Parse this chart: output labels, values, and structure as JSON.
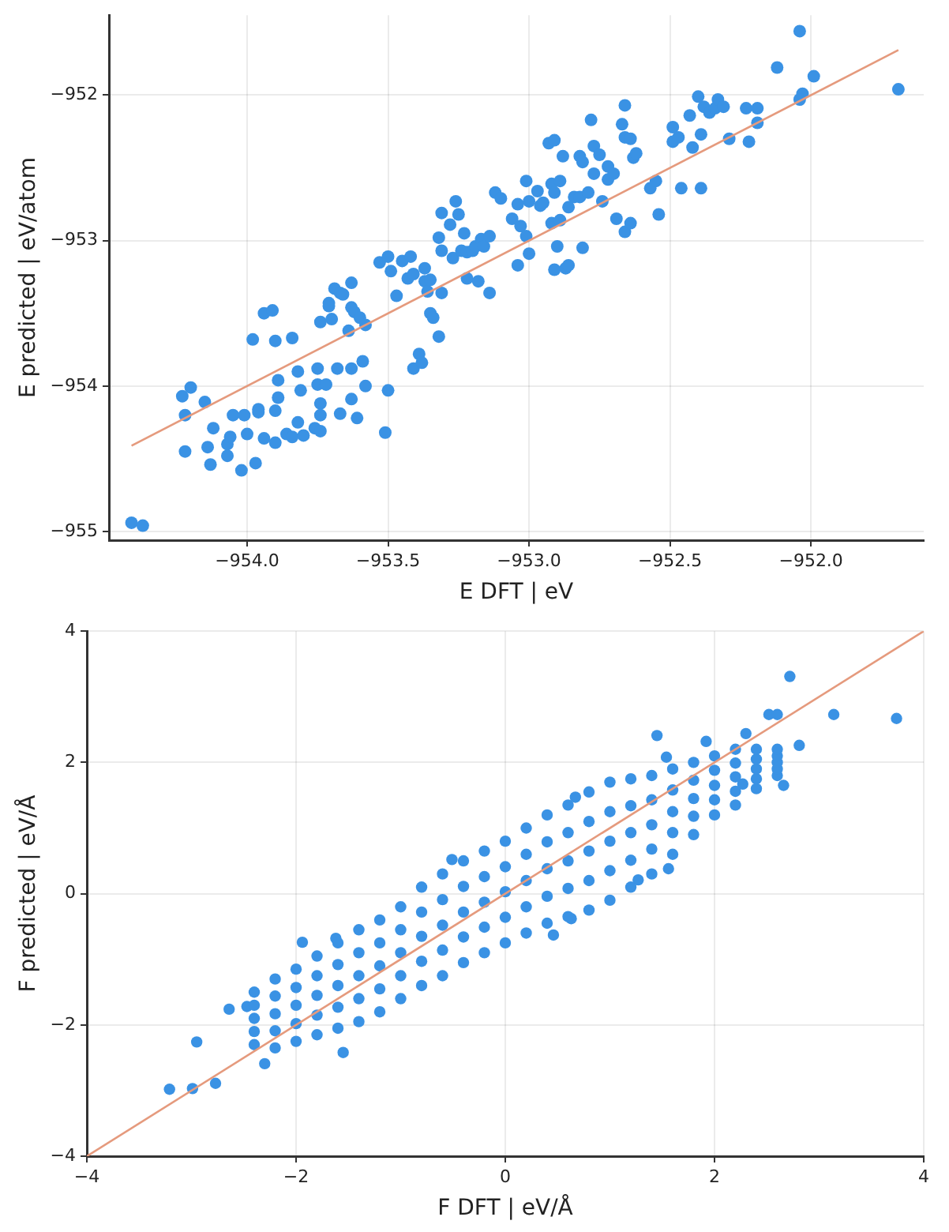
{
  "chart_data": [
    {
      "type": "scatter",
      "xlabel": "E DFT | eV",
      "ylabel": "E predicted | eV/atom",
      "xlim": [
        -954.49,
        -951.6
      ],
      "ylim": [
        -955.06,
        -951.45
      ],
      "grid": true,
      "xticks": [
        {
          "value": -954,
          "label": "−954.0"
        },
        {
          "value": -953.5,
          "label": "−953.5"
        },
        {
          "value": -953,
          "label": "−953.0"
        },
        {
          "value": -952.5,
          "label": "−952.5"
        },
        {
          "value": -952,
          "label": "−952.0"
        }
      ],
      "yticks": [
        {
          "value": -955,
          "label": "−955"
        },
        {
          "value": -954,
          "label": "−954"
        },
        {
          "value": -953,
          "label": "−953"
        },
        {
          "value": -952,
          "label": "−952"
        }
      ],
      "series": [
        {
          "color": "#3a92e4",
          "marker": "circle",
          "x": [
            -954.41,
            -954.37,
            -954.23,
            -954.2,
            -954.22,
            -954.22,
            -954.15,
            -954.14,
            -954.13,
            -954.12,
            -954.07,
            -954.07,
            -954.05,
            -954.06,
            -954.02,
            -954.01,
            -954.0,
            -953.97,
            -953.96,
            -953.96,
            -953.94,
            -953.98,
            -953.94,
            -953.91,
            -953.9,
            -953.9,
            -953.89,
            -953.89,
            -953.9,
            -953.86,
            -953.84,
            -953.84,
            -953.82,
            -953.82,
            -953.81,
            -953.8,
            -953.76,
            -953.75,
            -953.75,
            -953.74,
            -953.74,
            -953.74,
            -953.74,
            -953.72,
            -953.71,
            -953.71,
            -953.7,
            -953.69,
            -953.68,
            -953.67,
            -953.67,
            -953.66,
            -953.64,
            -953.63,
            -953.63,
            -953.63,
            -953.63,
            -953.62,
            -953.61,
            -953.6,
            -953.59,
            -953.58,
            -953.58,
            -953.53,
            -953.5,
            -953.49,
            -953.5,
            -953.51,
            -953.47,
            -953.45,
            -953.43,
            -953.42,
            -953.41,
            -953.41,
            -953.39,
            -953.38,
            -953.37,
            -953.37,
            -953.36,
            -953.35,
            -953.35,
            -953.34,
            -953.32,
            -953.32,
            -953.31,
            -953.31,
            -953.31,
            -953.28,
            -953.26,
            -953.27,
            -953.25,
            -953.24,
            -953.23,
            -953.22,
            -953.22,
            -953.2,
            -953.19,
            -953.18,
            -953.17,
            -953.16,
            -953.14,
            -953.14,
            -953.12,
            -953.1,
            -953.04,
            -953.06,
            -953.03,
            -953.04,
            -953.01,
            -953.01,
            -953.0,
            -953.0,
            -952.97,
            -952.96,
            -952.95,
            -952.93,
            -952.91,
            -952.92,
            -952.92,
            -952.91,
            -952.91,
            -952.89,
            -952.9,
            -952.88,
            -952.89,
            -952.87,
            -952.86,
            -952.86,
            -952.84,
            -952.82,
            -952.82,
            -952.81,
            -952.81,
            -952.79,
            -952.78,
            -952.77,
            -952.77,
            -952.75,
            -952.74,
            -952.72,
            -952.72,
            -952.7,
            -952.69,
            -952.67,
            -952.66,
            -952.66,
            -952.66,
            -952.64,
            -952.64,
            -952.63,
            -952.62,
            -952.57,
            -952.55,
            -952.54,
            -952.49,
            -952.49,
            -952.47,
            -952.46,
            -952.43,
            -952.42,
            -952.4,
            -952.39,
            -952.39,
            -952.38,
            -952.36,
            -952.34,
            -952.33,
            -952.31,
            -952.29,
            -952.23,
            -952.22,
            -952.19,
            -952.19,
            -952.12,
            -952.04,
            -952.04,
            -952.03,
            -951.99,
            -951.69
          ],
          "values": [
            -954.94,
            -954.96,
            -954.07,
            -954.01,
            -954.2,
            -954.45,
            -954.11,
            -954.42,
            -954.54,
            -954.29,
            -954.4,
            -954.48,
            -954.2,
            -954.35,
            -954.58,
            -954.2,
            -954.33,
            -954.53,
            -954.16,
            -954.18,
            -954.36,
            -953.68,
            -953.5,
            -953.48,
            -953.69,
            -954.39,
            -953.96,
            -954.08,
            -954.17,
            -954.33,
            -954.35,
            -953.67,
            -954.25,
            -953.9,
            -954.03,
            -954.34,
            -954.29,
            -953.88,
            -953.99,
            -954.12,
            -954.2,
            -954.31,
            -953.56,
            -953.99,
            -953.43,
            -953.45,
            -953.54,
            -953.33,
            -953.88,
            -954.19,
            -953.36,
            -953.37,
            -953.62,
            -953.88,
            -953.29,
            -954.09,
            -953.46,
            -953.49,
            -954.22,
            -953.53,
            -953.83,
            -953.58,
            -954.0,
            -953.15,
            -953.11,
            -953.21,
            -954.03,
            -954.32,
            -953.38,
            -953.14,
            -953.26,
            -953.11,
            -953.23,
            -953.88,
            -953.78,
            -953.84,
            -953.19,
            -953.28,
            -953.35,
            -953.27,
            -953.5,
            -953.53,
            -952.98,
            -953.66,
            -953.36,
            -952.81,
            -953.07,
            -952.89,
            -952.73,
            -953.12,
            -952.82,
            -953.07,
            -952.95,
            -953.26,
            -953.08,
            -953.07,
            -953.04,
            -953.28,
            -952.99,
            -953.04,
            -953.36,
            -952.97,
            -952.67,
            -952.71,
            -952.75,
            -952.85,
            -952.9,
            -953.17,
            -952.59,
            -952.97,
            -953.09,
            -952.73,
            -952.66,
            -952.76,
            -952.74,
            -952.33,
            -952.31,
            -952.61,
            -952.88,
            -952.67,
            -953.2,
            -952.86,
            -953.04,
            -952.42,
            -952.59,
            -953.19,
            -952.77,
            -953.17,
            -952.7,
            -952.7,
            -952.42,
            -952.46,
            -953.05,
            -952.67,
            -952.17,
            -952.35,
            -952.54,
            -952.41,
            -952.73,
            -952.49,
            -952.58,
            -952.54,
            -952.85,
            -952.2,
            -952.29,
            -952.07,
            -952.94,
            -952.3,
            -952.88,
            -952.43,
            -952.4,
            -952.64,
            -952.59,
            -952.82,
            -952.22,
            -952.32,
            -952.29,
            -952.64,
            -952.14,
            -952.36,
            -952.01,
            -952.27,
            -952.64,
            -952.08,
            -952.12,
            -952.09,
            -952.03,
            -952.08,
            -952.3,
            -952.09,
            -952.32,
            -952.09,
            -952.19,
            -951.81,
            -951.56,
            -952.03,
            -951.99,
            -951.87,
            -951.96
          ]
        },
        {
          "type": "line",
          "color": "#e59a7d",
          "x": [
            -954.41,
            -951.69
          ],
          "values": [
            -954.41,
            -951.69
          ]
        }
      ]
    },
    {
      "type": "scatter",
      "xlabel": "F DFT | eV/Å",
      "ylabel": "F predicted | eV/Å",
      "xlim": [
        -4,
        4
      ],
      "ylim": [
        -4,
        4
      ],
      "grid": true,
      "xticks": [
        {
          "value": -4,
          "label": "−4"
        },
        {
          "value": -2,
          "label": "−2"
        },
        0,
        2,
        4
      ],
      "yticks": [
        {
          "value": -4,
          "label": "−4"
        },
        {
          "value": -2,
          "label": "−2"
        },
        0,
        2,
        4
      ],
      "series": [
        {
          "color": "#3a92e4",
          "marker": "circle",
          "x": [
            2.72,
            3.14,
            3.74,
            2.52,
            2.6,
            1.45,
            2.3,
            2.81,
            2.66,
            -3.21,
            -2.99,
            -2.77,
            -2.95,
            -2.3,
            -1.55,
            -1.94,
            -0.51,
            0.67,
            0.46,
            1.56,
            1.27,
            -2.64,
            -2.47,
            -1.62,
            0.63,
            1.92,
            1.54,
            2.27,
            -2.4,
            -2.4,
            -2.4,
            -2.4,
            -2.4,
            -2.2,
            -2.2,
            -2.2,
            -2.2,
            -2.2,
            -2.0,
            -2.0,
            -2.0,
            -2.0,
            -2.0,
            -1.8,
            -1.8,
            -1.8,
            -1.8,
            -1.8,
            -1.6,
            -1.6,
            -1.6,
            -1.6,
            -1.6,
            -1.4,
            -1.4,
            -1.4,
            -1.4,
            -1.4,
            -1.2,
            -1.2,
            -1.2,
            -1.2,
            -1.2,
            -1.0,
            -1.0,
            -1.0,
            -1.0,
            -1.0,
            -0.8,
            -0.8,
            -0.8,
            -0.8,
            -0.8,
            -0.6,
            -0.6,
            -0.6,
            -0.6,
            -0.6,
            -0.4,
            -0.4,
            -0.4,
            -0.4,
            -0.4,
            -0.2,
            -0.2,
            -0.2,
            -0.2,
            -0.2,
            0,
            0,
            0,
            0,
            0,
            0.2,
            0.2,
            0.2,
            0.2,
            0.2,
            0.4,
            0.4,
            0.4,
            0.4,
            0.4,
            0.6,
            0.6,
            0.6,
            0.6,
            0.6,
            0.8,
            0.8,
            0.8,
            0.8,
            0.8,
            1.0,
            1.0,
            1.0,
            1.0,
            1.0,
            1.2,
            1.2,
            1.2,
            1.2,
            1.2,
            1.4,
            1.4,
            1.4,
            1.4,
            1.4,
            1.6,
            1.6,
            1.6,
            1.6,
            1.6,
            1.8,
            1.8,
            1.8,
            1.8,
            1.8,
            2.0,
            2.0,
            2.0,
            2.0,
            2.0,
            2.2,
            2.2,
            2.2,
            2.2,
            2.2,
            2.4,
            2.4,
            2.4,
            2.4,
            2.4,
            2.6,
            2.6,
            2.6,
            2.6,
            2.6
          ],
          "values": [
            3.31,
            2.73,
            2.67,
            2.73,
            2.73,
            2.41,
            2.44,
            2.26,
            1.65,
            -2.98,
            -2.97,
            -2.89,
            -2.26,
            -2.59,
            -2.42,
            -0.74,
            0.52,
            1.47,
            -0.63,
            0.38,
            0.21,
            -1.76,
            -1.72,
            -0.68,
            -0.38,
            2.32,
            2.08,
            1.67,
            -2.3,
            -2.1,
            -1.9,
            -1.7,
            -1.5,
            -2.35,
            -2.09,
            -1.83,
            -1.56,
            -1.3,
            -2.25,
            -1.98,
            -1.7,
            -1.43,
            -1.15,
            -2.15,
            -1.85,
            -1.55,
            -1.25,
            -0.95,
            -2.05,
            -1.73,
            -1.4,
            -1.08,
            -0.75,
            -1.95,
            -1.6,
            -1.25,
            -0.9,
            -0.55,
            -1.8,
            -1.45,
            -1.1,
            -0.75,
            -0.4,
            -1.6,
            -1.25,
            -0.9,
            -0.55,
            -0.2,
            -1.4,
            -1.03,
            -0.65,
            -0.28,
            0.1,
            -1.25,
            -0.86,
            -0.48,
            -0.09,
            0.3,
            -1.05,
            -0.66,
            -0.28,
            0.11,
            0.5,
            -0.9,
            -0.51,
            -0.13,
            0.26,
            0.65,
            -0.75,
            -0.36,
            0.03,
            0.41,
            0.8,
            -0.6,
            -0.2,
            0.2,
            0.6,
            1.0,
            -0.45,
            -0.04,
            0.38,
            0.79,
            1.2,
            -0.35,
            0.08,
            0.5,
            0.93,
            1.35,
            -0.25,
            0.2,
            0.65,
            1.1,
            1.55,
            -0.1,
            0.35,
            0.8,
            1.25,
            1.7,
            0.1,
            0.51,
            0.93,
            1.34,
            1.75,
            0.3,
            0.68,
            1.05,
            1.43,
            1.8,
            0.6,
            0.93,
            1.25,
            1.58,
            1.9,
            0.9,
            1.18,
            1.45,
            1.73,
            2.0,
            1.2,
            1.43,
            1.65,
            1.88,
            2.1,
            1.35,
            1.56,
            1.78,
            1.99,
            2.2,
            1.6,
            1.75,
            1.9,
            2.05,
            2.2,
            1.8,
            1.9,
            2.0,
            2.1,
            2.2
          ]
        },
        {
          "type": "line",
          "color": "#e59a7d",
          "x": [
            -4,
            4
          ],
          "values": [
            -4,
            4
          ]
        }
      ]
    }
  ]
}
